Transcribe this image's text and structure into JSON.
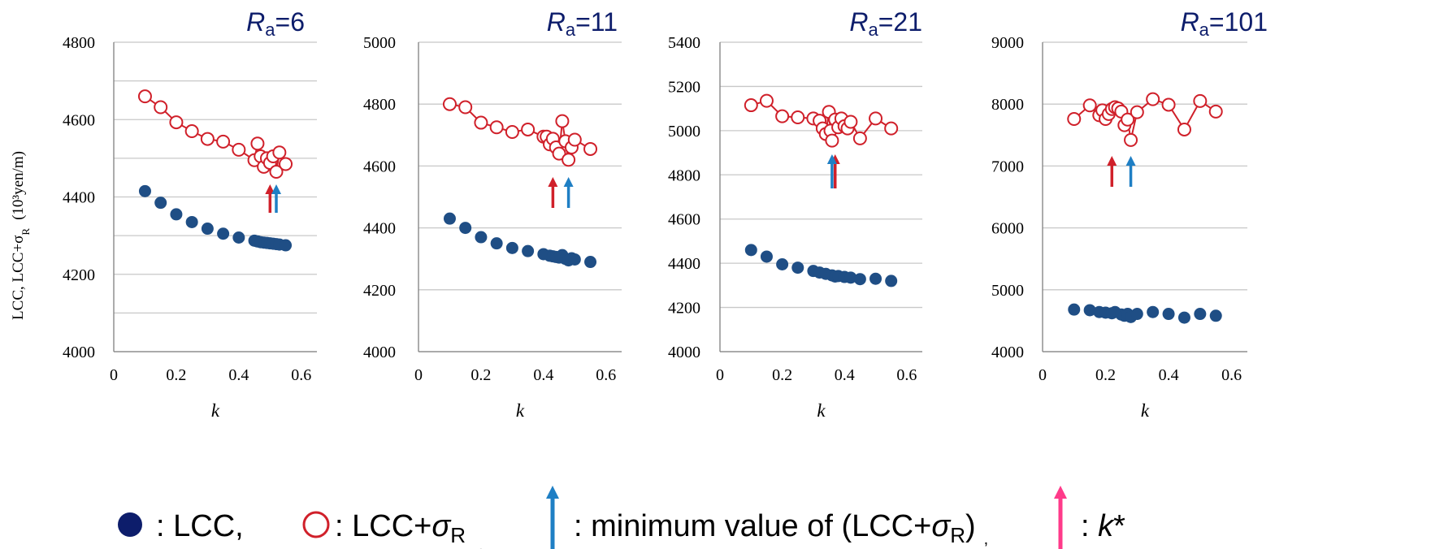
{
  "colors": {
    "lcc": "#1f4e85",
    "lcc_sigma": "#d0202a",
    "min_arrow": "#1f7fc4",
    "k_star_arrow": "#ff3b8a",
    "grid": "#c8c8c8",
    "axis": "#808080"
  },
  "y_axis_label": "LCC, LCC+σ",
  "y_axis_label_sub": "R",
  "y_axis_unit": "(10³yen/m)",
  "legend": {
    "lcc_label": ": LCC,",
    "lcc_sigma_label": ": LCC+",
    "lcc_sigma_sigma": "σ",
    "lcc_sigma_sub": "R",
    "sep1": ",",
    "min_label": ": minimum value of (LCC+",
    "min_sigma": "σ",
    "min_sub": "R",
    "min_close": ")",
    "sep2": ",",
    "kstar_label": ": ",
    "kstar_k": "k",
    "kstar_star": "*"
  },
  "chart_data": [
    {
      "type": "scatter",
      "title_main": "R",
      "title_sub": "a",
      "title_value": "=6",
      "xlabel": "k",
      "ylabel": "LCC, LCC+σR (10³yen/m)",
      "xlim": [
        0,
        0.65
      ],
      "ylim": [
        4000,
        4800
      ],
      "xticks": [
        "0",
        "0.2",
        "0.4",
        "0.6"
      ],
      "xtick_values": [
        0,
        0.2,
        0.4,
        0.6
      ],
      "yticks": [
        "4000",
        "4200",
        "4400",
        "4600",
        "4800"
      ],
      "ytick_values": [
        4000,
        4200,
        4400,
        4600,
        4800
      ],
      "grid_values": [
        4000,
        4100,
        4200,
        4300,
        4400,
        4500,
        4600,
        4700,
        4800
      ],
      "series": [
        {
          "name": "LCC",
          "x": [
            0.1,
            0.15,
            0.2,
            0.25,
            0.3,
            0.35,
            0.4,
            0.45,
            0.46,
            0.47,
            0.48,
            0.49,
            0.5,
            0.51,
            0.52,
            0.53,
            0.55
          ],
          "y": [
            4415,
            4385,
            4355,
            4335,
            4318,
            4305,
            4295,
            4287,
            4285,
            4283,
            4282,
            4281,
            4280,
            4279,
            4278,
            4277,
            4275
          ]
        },
        {
          "name": "LCC+σR",
          "x": [
            0.1,
            0.15,
            0.2,
            0.25,
            0.3,
            0.35,
            0.4,
            0.45,
            0.46,
            0.47,
            0.48,
            0.49,
            0.5,
            0.51,
            0.52,
            0.53,
            0.55
          ],
          "y": [
            4660,
            4632,
            4593,
            4570,
            4550,
            4543,
            4522,
            4495,
            4538,
            4505,
            4478,
            4500,
            4488,
            4505,
            4465,
            4515,
            4485
          ]
        }
      ],
      "min_arrow_k": 0.52,
      "kstar_arrow_k": 0.5
    },
    {
      "type": "scatter",
      "title_main": "R",
      "title_sub": "a",
      "title_value": "=11",
      "xlabel": "k",
      "xlim": [
        0,
        0.65
      ],
      "ylim": [
        4000,
        5000
      ],
      "xticks": [
        "0",
        "0.2",
        "0.4",
        "0.6"
      ],
      "xtick_values": [
        0,
        0.2,
        0.4,
        0.6
      ],
      "yticks": [
        "4000",
        "4200",
        "4400",
        "4600",
        "4800",
        "5000"
      ],
      "ytick_values": [
        4000,
        4200,
        4400,
        4600,
        4800,
        5000
      ],
      "grid_values": [
        4000,
        4200,
        4400,
        4600,
        4800,
        5000
      ],
      "series": [
        {
          "name": "LCC",
          "x": [
            0.1,
            0.15,
            0.2,
            0.25,
            0.3,
            0.35,
            0.4,
            0.42,
            0.43,
            0.44,
            0.45,
            0.46,
            0.47,
            0.48,
            0.49,
            0.5,
            0.55
          ],
          "y": [
            4430,
            4400,
            4370,
            4350,
            4335,
            4325,
            4315,
            4310,
            4308,
            4306,
            4304,
            4312,
            4300,
            4295,
            4302,
            4298,
            4290
          ]
        },
        {
          "name": "LCC+σR",
          "x": [
            0.1,
            0.15,
            0.2,
            0.25,
            0.3,
            0.35,
            0.4,
            0.41,
            0.42,
            0.43,
            0.44,
            0.45,
            0.46,
            0.47,
            0.48,
            0.49,
            0.5,
            0.55
          ],
          "y": [
            4800,
            4790,
            4740,
            4725,
            4710,
            4718,
            4695,
            4695,
            4670,
            4688,
            4660,
            4640,
            4745,
            4680,
            4620,
            4660,
            4685,
            4655
          ]
        }
      ],
      "min_arrow_k": 0.48,
      "kstar_arrow_k": 0.43
    },
    {
      "type": "scatter",
      "title_main": "R",
      "title_sub": "a",
      "title_value": "=21",
      "xlabel": "k",
      "xlim": [
        0,
        0.65
      ],
      "ylim": [
        4000,
        5400
      ],
      "xticks": [
        "0",
        "0.2",
        "0.4",
        "0.6"
      ],
      "xtick_values": [
        0,
        0.2,
        0.4,
        0.6
      ],
      "yticks": [
        "4000",
        "4200",
        "4400",
        "4600",
        "4800",
        "5000",
        "5200",
        "5400"
      ],
      "ytick_values": [
        4000,
        4200,
        4400,
        4600,
        4800,
        5000,
        5200,
        5400
      ],
      "grid_values": [
        4000,
        4200,
        4400,
        4600,
        4800,
        5000,
        5200,
        5400
      ],
      "series": [
        {
          "name": "LCC",
          "x": [
            0.1,
            0.15,
            0.2,
            0.25,
            0.3,
            0.32,
            0.34,
            0.36,
            0.37,
            0.38,
            0.4,
            0.42,
            0.45,
            0.5,
            0.55
          ],
          "y": [
            4460,
            4430,
            4395,
            4380,
            4365,
            4358,
            4352,
            4345,
            4340,
            4342,
            4338,
            4335,
            4328,
            4330,
            4320
          ]
        },
        {
          "name": "LCC+σR",
          "x": [
            0.1,
            0.15,
            0.2,
            0.25,
            0.3,
            0.32,
            0.33,
            0.34,
            0.35,
            0.355,
            0.36,
            0.37,
            0.38,
            0.39,
            0.4,
            0.41,
            0.42,
            0.45,
            0.5,
            0.55
          ],
          "y": [
            5115,
            5135,
            5065,
            5060,
            5055,
            5045,
            5010,
            4985,
            5085,
            5000,
            4955,
            5050,
            5015,
            5055,
            5020,
            5010,
            5040,
            4965,
            5055,
            5010
          ]
        }
      ],
      "min_arrow_k": 0.36,
      "kstar_arrow_k": 0.37
    },
    {
      "type": "scatter",
      "title_main": "R",
      "title_sub": "a",
      "title_value": "=101",
      "xlabel": "k",
      "xlim": [
        0,
        0.65
      ],
      "ylim": [
        4000,
        9000
      ],
      "xticks": [
        "0",
        "0.2",
        "0.4",
        "0.6"
      ],
      "xtick_values": [
        0,
        0.2,
        0.4,
        0.6
      ],
      "yticks": [
        "4000",
        "5000",
        "6000",
        "7000",
        "8000",
        "9000"
      ],
      "ytick_values": [
        4000,
        5000,
        6000,
        7000,
        8000,
        9000
      ],
      "grid_values": [
        4000,
        5000,
        6000,
        7000,
        8000,
        9000
      ],
      "series": [
        {
          "name": "LCC",
          "x": [
            0.1,
            0.15,
            0.18,
            0.2,
            0.22,
            0.23,
            0.25,
            0.26,
            0.27,
            0.28,
            0.3,
            0.35,
            0.4,
            0.45,
            0.5,
            0.55
          ],
          "y": [
            4680,
            4670,
            4640,
            4630,
            4620,
            4640,
            4600,
            4580,
            4610,
            4560,
            4610,
            4640,
            4610,
            4550,
            4610,
            4580
          ]
        },
        {
          "name": "LCC+σR",
          "x": [
            0.1,
            0.15,
            0.18,
            0.19,
            0.2,
            0.21,
            0.22,
            0.23,
            0.24,
            0.25,
            0.26,
            0.27,
            0.28,
            0.3,
            0.35,
            0.4,
            0.45,
            0.5,
            0.55
          ],
          "y": [
            7760,
            7980,
            7820,
            7900,
            7760,
            7840,
            7920,
            7950,
            7930,
            7880,
            7660,
            7750,
            7420,
            7870,
            8080,
            7990,
            7590,
            8050,
            7880
          ]
        }
      ],
      "min_arrow_k": 0.28,
      "kstar_arrow_k": 0.22
    }
  ]
}
